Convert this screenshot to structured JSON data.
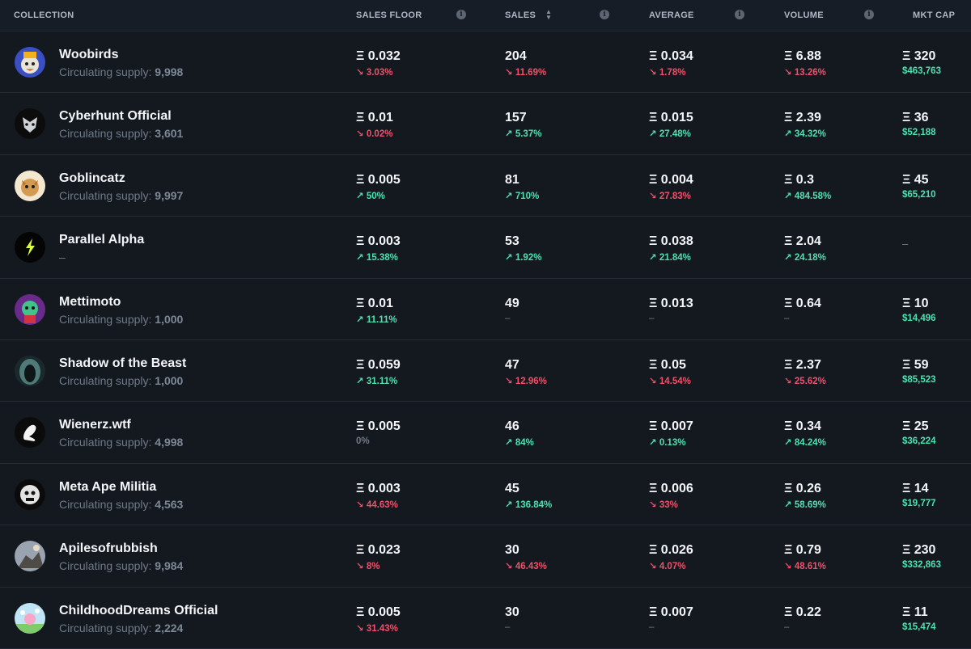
{
  "header": {
    "collection": "COLLECTION",
    "sales_floor": "SALES FLOOR",
    "sales": "SALES",
    "average": "AVERAGE",
    "volume": "VOLUME",
    "mkt_cap": "MKT CAP",
    "info_glyph": "i",
    "sort_glyph": "⌃⌄"
  },
  "supply_label": "Circulating supply:",
  "colors": {
    "up": "#4fe0b0",
    "down": "#f0506a",
    "background": "#141920"
  },
  "rows": [
    {
      "name": "Woobirds",
      "supply": "9,998",
      "floor": "Ξ 0.032",
      "floor_chg": "↘ 3.03%",
      "sales": "204",
      "sales_chg": "↘ 11.69%",
      "avg": "Ξ 0.034",
      "avg_chg": "↘ 1.78%",
      "vol": "Ξ 6.88",
      "vol_chg": "↘ 13.26%",
      "cap": "Ξ 320",
      "cap_usd": "$463,763"
    },
    {
      "name": "Cyberhunt Official",
      "supply": "3,601",
      "floor": "Ξ 0.01",
      "floor_chg": "↘ 0.02%",
      "sales": "157",
      "sales_chg": "↗ 5.37%",
      "avg": "Ξ 0.015",
      "avg_chg": "↗ 27.48%",
      "vol": "Ξ 2.39",
      "vol_chg": "↗ 34.32%",
      "cap": "Ξ 36",
      "cap_usd": "$52,188"
    },
    {
      "name": "Goblincatz",
      "supply": "9,997",
      "floor": "Ξ 0.005",
      "floor_chg": "↗ 50%",
      "sales": "81",
      "sales_chg": "↗ 710%",
      "avg": "Ξ 0.004",
      "avg_chg": "↘ 27.83%",
      "vol": "Ξ 0.3",
      "vol_chg": "↗ 484.58%",
      "cap": "Ξ 45",
      "cap_usd": "$65,210"
    },
    {
      "name": "Parallel Alpha",
      "supply": "–",
      "floor": "Ξ 0.003",
      "floor_chg": "↗ 15.38%",
      "sales": "53",
      "sales_chg": "↗ 1.92%",
      "avg": "Ξ 0.038",
      "avg_chg": "↗ 21.84%",
      "vol": "Ξ 2.04",
      "vol_chg": "↗ 24.18%",
      "cap": "–",
      "cap_usd": ""
    },
    {
      "name": "Mettimoto",
      "supply": "1,000",
      "floor": "Ξ 0.01",
      "floor_chg": "↗ 11.11%",
      "sales": "49",
      "sales_chg": "–",
      "avg": "Ξ 0.013",
      "avg_chg": "–",
      "vol": "Ξ 0.64",
      "vol_chg": "–",
      "cap": "Ξ 10",
      "cap_usd": "$14,496"
    },
    {
      "name": "Shadow of the Beast",
      "supply": "1,000",
      "floor": "Ξ 0.059",
      "floor_chg": "↗ 31.11%",
      "sales": "47",
      "sales_chg": "↘ 12.96%",
      "avg": "Ξ 0.05",
      "avg_chg": "↘ 14.54%",
      "vol": "Ξ 2.37",
      "vol_chg": "↘ 25.62%",
      "cap": "Ξ 59",
      "cap_usd": "$85,523"
    },
    {
      "name": "Wienerz.wtf",
      "supply": "4,998",
      "floor": "Ξ 0.005",
      "floor_chg": "0%",
      "sales": "46",
      "sales_chg": "↗ 84%",
      "avg": "Ξ 0.007",
      "avg_chg": "↗ 0.13%",
      "vol": "Ξ 0.34",
      "vol_chg": "↗ 84.24%",
      "cap": "Ξ 25",
      "cap_usd": "$36,224"
    },
    {
      "name": "Meta Ape Militia",
      "supply": "4,563",
      "floor": "Ξ 0.003",
      "floor_chg": "↘ 44.63%",
      "sales": "45",
      "sales_chg": "↗ 136.84%",
      "avg": "Ξ 0.006",
      "avg_chg": "↘ 33%",
      "vol": "Ξ 0.26",
      "vol_chg": "↗ 58.69%",
      "cap": "Ξ 14",
      "cap_usd": "$19,777"
    },
    {
      "name": "Apilesofrubbish",
      "supply": "9,984",
      "floor": "Ξ 0.023",
      "floor_chg": "↘ 8%",
      "sales": "30",
      "sales_chg": "↘ 46.43%",
      "avg": "Ξ 0.026",
      "avg_chg": "↘ 4.07%",
      "vol": "Ξ 0.79",
      "vol_chg": "↘ 48.61%",
      "cap": "Ξ 230",
      "cap_usd": "$332,863"
    },
    {
      "name": "ChildhoodDreams Official",
      "supply": "2,224",
      "floor": "Ξ 0.005",
      "floor_chg": "↘ 31.43%",
      "sales": "30",
      "sales_chg": "–",
      "avg": "Ξ 0.007",
      "avg_chg": "–",
      "vol": "Ξ 0.22",
      "vol_chg": "–",
      "cap": "Ξ 11",
      "cap_usd": "$15,474"
    }
  ]
}
